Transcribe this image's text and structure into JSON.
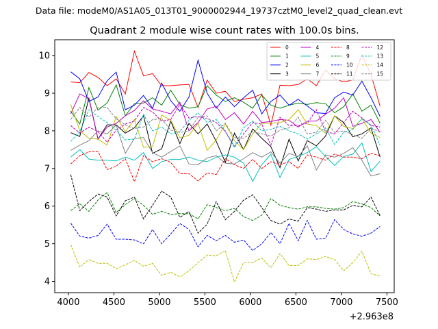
{
  "header": {
    "data_file_label": "Data file: modeM0/AS1A05_013T01_9000002944_19737cztM0_level2_quad_clean.evt"
  },
  "chart_data": {
    "type": "line",
    "title": "Quadrant 2 module wise count rates with 100.0s bins.",
    "xlabel": "",
    "ylabel": "",
    "x_offset_label": "+2.963e8",
    "xlim": [
      3850,
      7580
    ],
    "ylim": [
      3.7,
      10.42
    ],
    "xticks": [
      4000,
      4500,
      5000,
      5500,
      6000,
      6500,
      7000,
      7500
    ],
    "yticks": [
      4,
      5,
      6,
      7,
      8,
      9,
      10
    ],
    "x": [
      4025,
      4125,
      4225,
      4325,
      4425,
      4525,
      4625,
      4725,
      4825,
      4925,
      5025,
      5125,
      5225,
      5325,
      5425,
      5525,
      5625,
      5725,
      5825,
      5925,
      6025,
      6125,
      6225,
      6325,
      6425,
      6525,
      6625,
      6725,
      6825,
      6925,
      7025,
      7125,
      7225,
      7325,
      7425
    ],
    "legend": {
      "placement": "top-right",
      "columns": 4
    },
    "series": [
      {
        "name": "0",
        "color": "#ff0000",
        "dash": "solid",
        "values": [
          9.3,
          9.28,
          9.55,
          9.42,
          9.2,
          9.38,
          8.98,
          10.12,
          9.46,
          9.52,
          9.2,
          9.2,
          9.22,
          9.23,
          8.62,
          9.35,
          9.0,
          9.05,
          8.78,
          8.84,
          8.88,
          8.98,
          8.15,
          9.21,
          9.2,
          9.23,
          9.38,
          9.2,
          9.62,
          9.38,
          9.3,
          9.35,
          10.02,
          9.5,
          8.65
        ]
      },
      {
        "name": "1",
        "color": "#008000",
        "dash": "solid",
        "values": [
          8.52,
          8.18,
          9.15,
          8.55,
          8.74,
          9.22,
          8.4,
          8.72,
          8.74,
          8.88,
          8.68,
          9.08,
          8.7,
          8.6,
          8.64,
          9.2,
          8.95,
          8.78,
          8.88,
          8.76,
          8.6,
          8.95,
          8.68,
          8.6,
          8.68,
          8.74,
          8.7,
          8.75,
          8.72,
          8.48,
          8.64,
          8.98,
          8.52,
          8.68,
          8.2
        ]
      },
      {
        "name": "2",
        "color": "#0000ff",
        "dash": "solid",
        "values": [
          9.57,
          9.38,
          8.78,
          8.9,
          9.33,
          9.56,
          8.56,
          8.68,
          8.94,
          8.6,
          9.27,
          8.8,
          8.52,
          8.9,
          9.88,
          9.0,
          8.6,
          8.9,
          8.64,
          8.88,
          9.08,
          8.45,
          8.78,
          8.95,
          8.68,
          8.84,
          8.66,
          8.48,
          8.46,
          8.88,
          9.03,
          8.95,
          9.32,
          8.88,
          8.38
        ]
      },
      {
        "name": "3",
        "color": "#000000",
        "dash": "solid",
        "values": [
          7.95,
          7.85,
          8.88,
          7.78,
          8.16,
          8.16,
          7.94,
          8.08,
          8.4,
          7.4,
          7.52,
          8.26,
          7.66,
          8.2,
          7.92,
          8.18,
          7.72,
          7.16,
          7.94,
          7.5,
          8.05,
          7.8,
          7.58,
          7.02,
          7.78,
          7.2,
          7.74,
          7.6,
          7.86,
          8.4,
          8.22,
          7.84,
          7.92,
          8.08,
          7.3
        ]
      },
      {
        "name": "4",
        "color": "#bf00bf",
        "dash": "solid",
        "values": [
          8.45,
          8.98,
          8.86,
          7.78,
          8.1,
          8.2,
          8.4,
          8.54,
          8.8,
          8.58,
          8.52,
          8.45,
          8.76,
          8.0,
          8.22,
          8.58,
          8.65,
          8.3,
          8.48,
          8.18,
          8.52,
          8.22,
          8.25,
          8.3,
          8.28,
          8.1,
          8.26,
          8.26,
          8.44,
          8.6,
          8.88,
          8.12,
          8.2,
          8.3,
          7.96
        ]
      },
      {
        "name": "5",
        "color": "#00bfbf",
        "dash": "solid",
        "values": [
          7.3,
          7.5,
          7.25,
          7.22,
          7.22,
          7.2,
          7.3,
          7.22,
          7.42,
          7.0,
          7.18,
          7.24,
          7.24,
          7.3,
          7.22,
          7.18,
          7.3,
          7.36,
          7.3,
          7.14,
          6.66,
          7.1,
          7.38,
          6.76,
          7.24,
          7.32,
          7.42,
          7.58,
          7.32,
          7.08,
          7.32,
          7.38,
          7.68,
          6.92,
          7.2
        ]
      },
      {
        "name": "6",
        "color": "#bfbf00",
        "dash": "solid",
        "values": [
          8.7,
          8.0,
          7.8,
          7.78,
          7.62,
          8.38,
          7.98,
          8.3,
          7.56,
          7.58,
          8.42,
          8.28,
          7.82,
          7.88,
          8.2,
          7.48,
          7.76,
          8.18,
          7.74,
          7.5,
          7.92,
          8.2,
          8.2,
          8.22,
          8.3,
          8.56,
          8.18,
          8.14,
          7.94,
          8.4,
          8.12,
          8.06,
          8.32,
          7.94,
          7.82
        ]
      },
      {
        "name": "7",
        "color": "#808080",
        "dash": "solid",
        "values": [
          7.48,
          7.62,
          7.74,
          8.0,
          7.92,
          8.15,
          7.4,
          7.8,
          7.82,
          7.42,
          7.3,
          7.45,
          7.6,
          7.12,
          7.1,
          7.28,
          7.34,
          7.14,
          7.12,
          7.26,
          7.42,
          7.3,
          7.44,
          7.14,
          7.4,
          7.32,
          7.6,
          6.96,
          7.36,
          7.3,
          7.4,
          7.55,
          7.22,
          6.8,
          6.86
        ]
      },
      {
        "name": "8",
        "color": "#ff0000",
        "dash": "dashed",
        "values": [
          7.12,
          7.34,
          7.44,
          7.45,
          6.97,
          7.06,
          7.26,
          6.65,
          7.34,
          7.18,
          7.26,
          7.16,
          6.86,
          6.86,
          6.67,
          6.88,
          6.84,
          7.26,
          7.1,
          7.0,
          7.24,
          7.0,
          7.18,
          7.1,
          7.18,
          7.0,
          7.36,
          7.3,
          7.22,
          7.38,
          7.3,
          7.3,
          7.26,
          7.4,
          7.34
        ]
      },
      {
        "name": "9",
        "color": "#008000",
        "dash": "dashed",
        "values": [
          5.88,
          6.06,
          5.86,
          6.16,
          6.36,
          5.83,
          6.04,
          6.2,
          6.02,
          5.78,
          5.86,
          5.78,
          5.8,
          5.8,
          5.66,
          6.04,
          5.96,
          5.88,
          5.94,
          5.72,
          5.62,
          5.76,
          6.2,
          6.02,
          5.96,
          5.92,
          5.98,
          5.98,
          5.94,
          5.92,
          5.96,
          6.12,
          6.06,
          5.96,
          5.74
        ]
      },
      {
        "name": "10",
        "color": "#0000ff",
        "dash": "dashed",
        "values": [
          5.55,
          5.2,
          5.15,
          5.22,
          5.52,
          5.12,
          5.12,
          5.1,
          5.0,
          5.38,
          5.0,
          5.26,
          5.54,
          5.38,
          4.92,
          5.22,
          5.08,
          5.22,
          5.04,
          5.1,
          4.82,
          5.0,
          5.3,
          5.0,
          5.54,
          5.08,
          5.62,
          5.12,
          5.14,
          5.64,
          5.38,
          5.26,
          5.2,
          5.28,
          5.46
        ]
      },
      {
        "name": "11",
        "color": "#000000",
        "dash": "dashed",
        "values": [
          6.84,
          5.88,
          6.12,
          6.32,
          6.24,
          5.74,
          6.14,
          6.24,
          5.66,
          6.02,
          6.4,
          6.24,
          5.7,
          5.86,
          5.28,
          5.52,
          6.12,
          5.64,
          5.86,
          6.16,
          6.3,
          5.96,
          5.62,
          5.52,
          5.66,
          5.6,
          5.96,
          5.92,
          5.86,
          5.9,
          5.9,
          6.02,
          5.98,
          6.24,
          5.74
        ]
      },
      {
        "name": "12",
        "color": "#bf00bf",
        "dash": "dashed",
        "values": [
          8.14,
          7.94,
          8.1,
          7.98,
          7.7,
          8.02,
          8.18,
          8.26,
          8.62,
          8.5,
          8.26,
          8.3,
          8.7,
          8.34,
          8.38,
          8.32,
          8.22,
          7.98,
          7.56,
          7.92,
          8.22,
          8.18,
          7.62,
          8.36,
          8.14,
          8.14,
          8.2,
          8.56,
          7.98,
          7.92,
          8.22,
          8.52,
          8.34,
          8.14,
          8.1
        ]
      },
      {
        "name": "13",
        "color": "#00bfbf",
        "dash": "dashed",
        "values": [
          7.72,
          7.98,
          8.56,
          8.38,
          8.22,
          8.02,
          7.76,
          7.78,
          8.44,
          8.0,
          8.1,
          7.92,
          7.98,
          8.28,
          8.48,
          8.22,
          8.3,
          8.0,
          7.58,
          8.08,
          8.26,
          8.0,
          8.04,
          8.12,
          8.0,
          7.92,
          7.78,
          7.92,
          8.08,
          7.64,
          7.96,
          8.04,
          8.32,
          8.16,
          7.62
        ]
      },
      {
        "name": "14",
        "color": "#bfbf00",
        "dash": "dashed",
        "values": [
          4.98,
          4.38,
          4.58,
          4.48,
          4.48,
          4.34,
          4.44,
          4.56,
          4.4,
          4.48,
          4.16,
          4.24,
          4.12,
          4.28,
          4.5,
          4.7,
          4.68,
          4.82,
          3.98,
          4.5,
          4.5,
          4.62,
          4.36,
          4.74,
          4.42,
          4.42,
          4.6,
          4.58,
          4.66,
          4.58,
          4.28,
          4.5,
          4.8,
          4.2,
          4.14
        ]
      },
      {
        "name": "15",
        "color": "#808080",
        "dash": "dashed",
        "values": [
          8.3,
          8.62,
          8.36,
          8.62,
          8.62,
          8.32,
          8.16,
          8.06,
          8.1,
          8.3,
          8.32,
          8.02,
          7.96,
          8.0,
          8.36,
          8.4,
          8.0,
          8.2,
          7.82,
          7.8,
          7.98,
          7.92,
          7.86,
          8.02,
          8.08,
          8.36,
          7.92,
          7.96,
          8.28,
          7.96,
          8.0,
          7.9,
          7.8,
          8.06,
          7.98
        ]
      }
    ]
  }
}
